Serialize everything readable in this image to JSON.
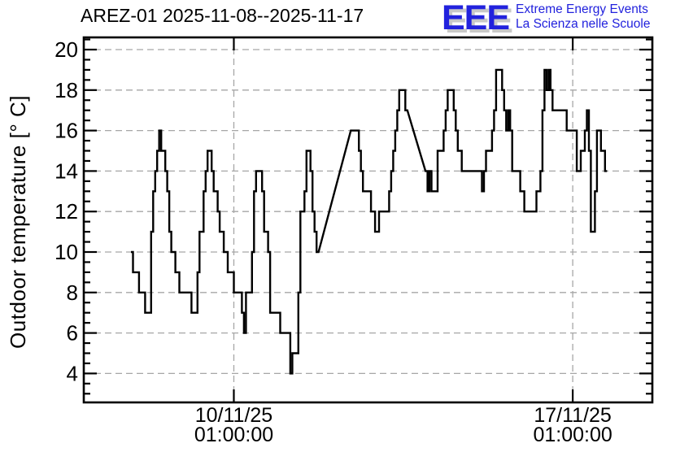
{
  "header": {
    "title": "AREZ-01 2025-11-08--2025-11-17"
  },
  "logo": {
    "eee": "EEE",
    "line1": "Extreme Energy Events",
    "line2": "La Scienza nelle Scuole",
    "blue": "#2222dd",
    "shadow": "#c8c8c8"
  },
  "chart_data": {
    "type": "line",
    "subtype": "step-after",
    "title": "AREZ-01 2025-11-08--2025-11-17",
    "ylabel": "Outdoor temperature [° C]",
    "xlabel": "",
    "ylim": [
      2.6,
      20.7
    ],
    "xlim_hours": [
      -23.4,
      258.5
    ],
    "grid": true,
    "legend": "none",
    "line_color": "#000000",
    "grid_color": "#a6a6a6",
    "y_major_ticks": [
      4,
      6,
      8,
      10,
      12,
      14,
      16,
      18,
      20
    ],
    "y_minor_step": 0.5,
    "x_ticks": [
      {
        "t": 51,
        "label": [
          "10/11/25",
          "01:00:00"
        ]
      },
      {
        "t": 219,
        "label": [
          "17/11/25",
          "01:00:00"
        ]
      }
    ],
    "x_unit": "hours since first sample (approx 08/11/25 00:00)",
    "gaps": [
      [
        93,
        109
      ],
      [
        137,
        146
      ]
    ],
    "series_points": [
      [
        0,
        10
      ],
      [
        1,
        9
      ],
      [
        2,
        9
      ],
      [
        3,
        9
      ],
      [
        4,
        8
      ],
      [
        5,
        8
      ],
      [
        6,
        8
      ],
      [
        7,
        7
      ],
      [
        8,
        7
      ],
      [
        9,
        7
      ],
      [
        10,
        11
      ],
      [
        11,
        13
      ],
      [
        12,
        14
      ],
      [
        13,
        15
      ],
      [
        14,
        16
      ],
      [
        15,
        15
      ],
      [
        16,
        15
      ],
      [
        17,
        14
      ],
      [
        18,
        13
      ],
      [
        19,
        11
      ],
      [
        20,
        10
      ],
      [
        21,
        10
      ],
      [
        22,
        9
      ],
      [
        23,
        9
      ],
      [
        24,
        8
      ],
      [
        25,
        8
      ],
      [
        26,
        8
      ],
      [
        27,
        8
      ],
      [
        28,
        8
      ],
      [
        29,
        8
      ],
      [
        30,
        7
      ],
      [
        31,
        7
      ],
      [
        32,
        7
      ],
      [
        33,
        9
      ],
      [
        34,
        11
      ],
      [
        35,
        11
      ],
      [
        36,
        13
      ],
      [
        37,
        14
      ],
      [
        38,
        15
      ],
      [
        39,
        15
      ],
      [
        40,
        14
      ],
      [
        41,
        13
      ],
      [
        42,
        13
      ],
      [
        43,
        12
      ],
      [
        44,
        11
      ],
      [
        45,
        11
      ],
      [
        46,
        10
      ],
      [
        47,
        10
      ],
      [
        48,
        9
      ],
      [
        49,
        9
      ],
      [
        50,
        9
      ],
      [
        51,
        8
      ],
      [
        52,
        8
      ],
      [
        53,
        8
      ],
      [
        54,
        8
      ],
      [
        55,
        7
      ],
      [
        56,
        6
      ],
      [
        57,
        8
      ],
      [
        58,
        8
      ],
      [
        59,
        8
      ],
      [
        60,
        10
      ],
      [
        61,
        13
      ],
      [
        62,
        14
      ],
      [
        63,
        14
      ],
      [
        64,
        14
      ],
      [
        65,
        13
      ],
      [
        66,
        11
      ],
      [
        67,
        11
      ],
      [
        68,
        10
      ],
      [
        69,
        7
      ],
      [
        70,
        7
      ],
      [
        71,
        7
      ],
      [
        72,
        7
      ],
      [
        73,
        7
      ],
      [
        74,
        6
      ],
      [
        75,
        6
      ],
      [
        76,
        6
      ],
      [
        77,
        6
      ],
      [
        78,
        6
      ],
      [
        79,
        4
      ],
      [
        80,
        5
      ],
      [
        81,
        5
      ],
      [
        82,
        5
      ],
      [
        83,
        8
      ],
      [
        84,
        12
      ],
      [
        85,
        12
      ],
      [
        86,
        13
      ],
      [
        87,
        15
      ],
      [
        88,
        15
      ],
      [
        89,
        14
      ],
      [
        90,
        12
      ],
      [
        91,
        11
      ],
      [
        92,
        10
      ],
      [
        93,
        10
      ],
      [
        109,
        16
      ],
      [
        110,
        16
      ],
      [
        111,
        16
      ],
      [
        112,
        16
      ],
      [
        113,
        15
      ],
      [
        114,
        14
      ],
      [
        115,
        13
      ],
      [
        116,
        13
      ],
      [
        117,
        13
      ],
      [
        118,
        13
      ],
      [
        119,
        12
      ],
      [
        120,
        12
      ],
      [
        121,
        11
      ],
      [
        122,
        11
      ],
      [
        123,
        12
      ],
      [
        124,
        12
      ],
      [
        125,
        12
      ],
      [
        126,
        12
      ],
      [
        127,
        12
      ],
      [
        128,
        13
      ],
      [
        129,
        14
      ],
      [
        130,
        15
      ],
      [
        131,
        16
      ],
      [
        132,
        17
      ],
      [
        133,
        18
      ],
      [
        134,
        18
      ],
      [
        135,
        18
      ],
      [
        136,
        17
      ],
      [
        137,
        17
      ],
      [
        146,
        14
      ],
      [
        147,
        13
      ],
      [
        148,
        14
      ],
      [
        149,
        13
      ],
      [
        150,
        13
      ],
      [
        151,
        13
      ],
      [
        152,
        15
      ],
      [
        153,
        15
      ],
      [
        154,
        15
      ],
      [
        155,
        16
      ],
      [
        156,
        17
      ],
      [
        157,
        18
      ],
      [
        158,
        18
      ],
      [
        159,
        18
      ],
      [
        160,
        17
      ],
      [
        161,
        16
      ],
      [
        162,
        15
      ],
      [
        163,
        15
      ],
      [
        164,
        14
      ],
      [
        165,
        14
      ],
      [
        166,
        14
      ],
      [
        167,
        14
      ],
      [
        168,
        14
      ],
      [
        169,
        14
      ],
      [
        170,
        14
      ],
      [
        171,
        14
      ],
      [
        172,
        14
      ],
      [
        173,
        14
      ],
      [
        174,
        13
      ],
      [
        175,
        14
      ],
      [
        176,
        15
      ],
      [
        177,
        15
      ],
      [
        178,
        15
      ],
      [
        179,
        16
      ],
      [
        180,
        17
      ],
      [
        181,
        19
      ],
      [
        182,
        19
      ],
      [
        183,
        19
      ],
      [
        184,
        18
      ],
      [
        185,
        17
      ],
      [
        186,
        16
      ],
      [
        187,
        17
      ],
      [
        188,
        16
      ],
      [
        189,
        14
      ],
      [
        190,
        14
      ],
      [
        191,
        14
      ],
      [
        192,
        14
      ],
      [
        193,
        13
      ],
      [
        194,
        13
      ],
      [
        195,
        12
      ],
      [
        196,
        12
      ],
      [
        197,
        12
      ],
      [
        198,
        12
      ],
      [
        199,
        12
      ],
      [
        200,
        12
      ],
      [
        201,
        13
      ],
      [
        202,
        13
      ],
      [
        203,
        14
      ],
      [
        204,
        17
      ],
      [
        205,
        19
      ],
      [
        206,
        18
      ],
      [
        207,
        19
      ],
      [
        208,
        18
      ],
      [
        209,
        17
      ],
      [
        210,
        17
      ],
      [
        211,
        17
      ],
      [
        212,
        17
      ],
      [
        213,
        17
      ],
      [
        214,
        17
      ],
      [
        215,
        17
      ],
      [
        216,
        16
      ],
      [
        217,
        16
      ],
      [
        218,
        16
      ],
      [
        219,
        16
      ],
      [
        220,
        16
      ],
      [
        221,
        14
      ],
      [
        222,
        14
      ],
      [
        223,
        15
      ],
      [
        224,
        15
      ],
      [
        225,
        16
      ],
      [
        226,
        17
      ],
      [
        227,
        15
      ],
      [
        228,
        11
      ],
      [
        229,
        11
      ],
      [
        230,
        13
      ],
      [
        231,
        16
      ],
      [
        232,
        16
      ],
      [
        233,
        15
      ],
      [
        234,
        15
      ],
      [
        235,
        14
      ]
    ]
  }
}
